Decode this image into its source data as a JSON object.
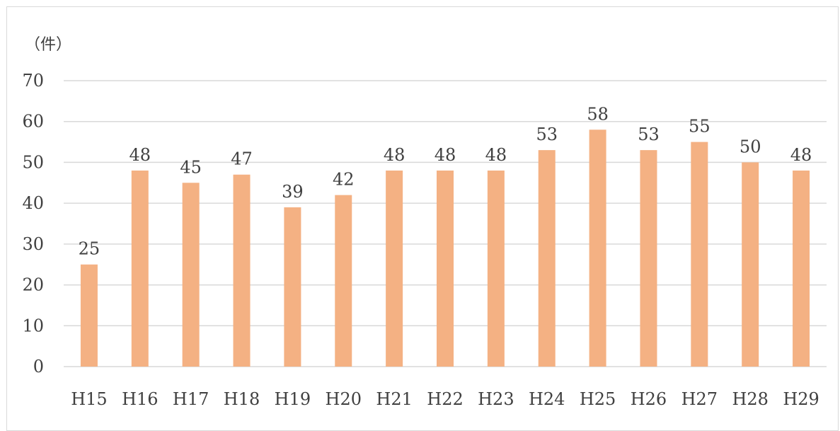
{
  "chart_data": {
    "type": "bar",
    "title": "",
    "unit_label": "（件）",
    "xlabel": "",
    "ylabel": "",
    "categories": [
      "H15",
      "H16",
      "H17",
      "H18",
      "H19",
      "H20",
      "H21",
      "H22",
      "H23",
      "H24",
      "H25",
      "H26",
      "H27",
      "H28",
      "H29"
    ],
    "values": [
      25,
      48,
      45,
      47,
      39,
      42,
      48,
      48,
      48,
      53,
      58,
      53,
      55,
      50,
      48
    ],
    "ylim": [
      0,
      70
    ],
    "yticks": [
      0,
      10,
      20,
      30,
      40,
      50,
      60,
      70
    ],
    "grid": true,
    "legend": "none",
    "bar_color": "#F4B183",
    "grid_color": "#d9d9d9",
    "text_color": "#404040"
  }
}
